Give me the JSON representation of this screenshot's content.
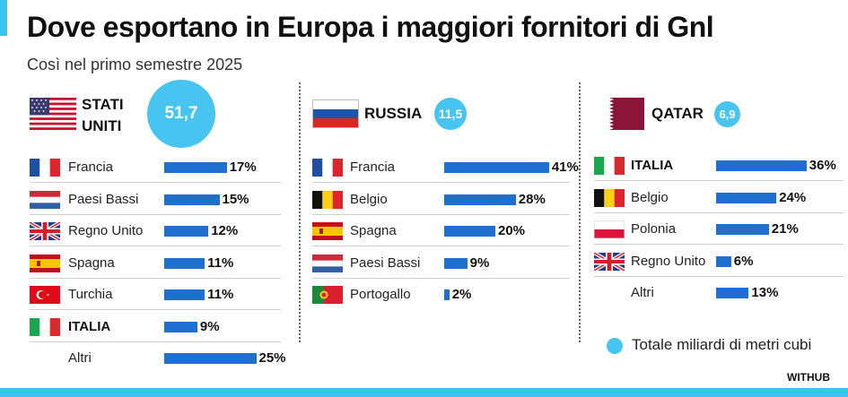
{
  "title": "Dove esportano in Europa i maggiori fornitori di Gnl",
  "subtitle": "Così nel primo semestre 2025",
  "legend": "Totale miliardi di metri cubi",
  "source": "WITHUB",
  "colors": {
    "accent": "#3cc3ee",
    "bubble": "#47c4f0",
    "bar": "#1f6fd1"
  },
  "chart_data": [
    {
      "type": "bar",
      "supplier": "STATI UNITI",
      "supplier_lines": [
        "STATI",
        "UNITI"
      ],
      "total": "51,7",
      "total_unit": "miliardi di metri cubi",
      "categories": [
        "Francia",
        "Paesi Bassi",
        "Regno Unito",
        "Spagna",
        "Turchia",
        "ITALIA",
        "Altri"
      ],
      "values": [
        17,
        15,
        12,
        11,
        11,
        9,
        25
      ],
      "labels": [
        "17%",
        "15%",
        "12%",
        "11%",
        "11%",
        "9%",
        "25%"
      ],
      "flags": [
        "france-flag-icon",
        "netherlands-flag-icon",
        "uk-flag-icon",
        "spain-flag-icon",
        "turkey-flag-icon",
        "italy-flag-icon",
        ""
      ],
      "bold": [
        false,
        false,
        false,
        false,
        false,
        true,
        false
      ]
    },
    {
      "type": "bar",
      "supplier": "RUSSIA",
      "total": "11,5",
      "total_unit": "miliardi di metri cubi",
      "categories": [
        "Francia",
        "Belgio",
        "Spagna",
        "Paesi Bassi",
        "Portogallo"
      ],
      "values": [
        41,
        28,
        20,
        9,
        2
      ],
      "labels": [
        "41%",
        "28%",
        "20%",
        "9%",
        "2%"
      ],
      "flags": [
        "france-flag-icon",
        "belgium-flag-icon",
        "spain-flag-icon",
        "netherlands-flag-icon",
        "portugal-flag-icon"
      ],
      "bold": [
        false,
        false,
        false,
        false,
        false
      ]
    },
    {
      "type": "bar",
      "supplier": "QATAR",
      "total": "6,9",
      "total_unit": "miliardi di metri cubi",
      "categories": [
        "ITALIA",
        "Belgio",
        "Polonia",
        "Regno Unito",
        "Altri"
      ],
      "values": [
        36,
        24,
        21,
        6,
        13
      ],
      "labels": [
        "36%",
        "24%",
        "21%",
        "6%",
        "13%"
      ],
      "flags": [
        "italy-flag-icon",
        "belgium-flag-icon",
        "poland-flag-icon",
        "uk-flag-icon",
        ""
      ],
      "bold": [
        true,
        false,
        false,
        false,
        false
      ]
    }
  ]
}
